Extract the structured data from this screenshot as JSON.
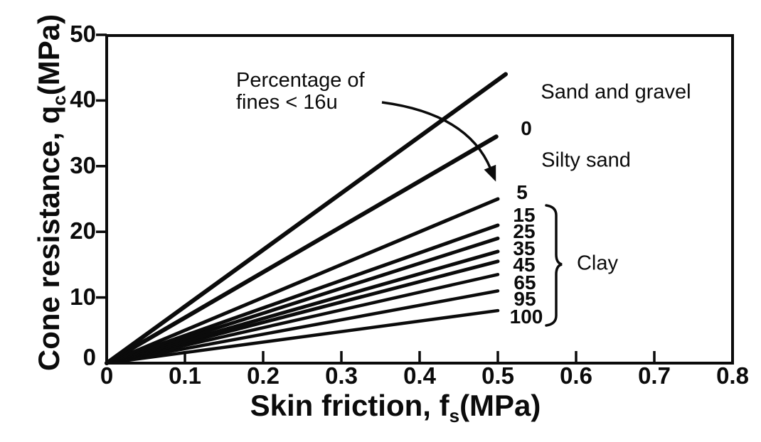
{
  "figure": {
    "background_color": "#ffffff",
    "ink_color": "#0b0b0b",
    "description": "Soil classification chart: cone resistance versus skin friction with lines of constant percentage of fines"
  },
  "chart_data": {
    "type": "line",
    "title": "",
    "xlabel": "Skin friction, fs (MPa)",
    "xlabel_parts": {
      "prefix": "Skin friction, f",
      "sub": "s",
      "suffix": "(MPa)"
    },
    "ylabel": "Cone resistance, qc (MPa)",
    "ylabel_parts": {
      "prefix": "Cone resistance, q",
      "sub": "c",
      "suffix": "(MPa)"
    },
    "xlim": [
      0,
      0.8
    ],
    "ylim": [
      0,
      50
    ],
    "x_ticks": [
      0,
      0.1,
      0.2,
      0.3,
      0.4,
      0.5,
      0.6,
      0.7,
      0.8
    ],
    "x_tick_labels": [
      "0",
      "0.1",
      "0.2",
      "0.3",
      "0.4",
      "0.5",
      "0.6",
      "0.7",
      "0.8"
    ],
    "y_ticks": [
      0,
      10,
      20,
      30,
      40,
      50
    ],
    "y_tick_labels": [
      "0",
      "10",
      "20",
      "30",
      "40",
      "50"
    ],
    "grid": false,
    "legend_position": "none",
    "annotation": {
      "line1": "Percentage of",
      "line2": "fines < 16u"
    },
    "soil_regions": [
      {
        "label": "Sand and gravel"
      },
      {
        "label": "Silty sand"
      },
      {
        "label": "Clay",
        "applies_to_fines_labels": [
          "15",
          "25",
          "35",
          "45",
          "65",
          "95",
          "100"
        ]
      }
    ],
    "series": [
      {
        "label": "",
        "region": "Sand and gravel",
        "fines_percent": null,
        "slope_qc_over_fs": 87,
        "start": {
          "fs": 0,
          "qc": 0
        },
        "end": {
          "fs": 0.51,
          "qc": 44
        }
      },
      {
        "label": "0",
        "region": "Silty sand",
        "fines_percent": 0,
        "slope_qc_over_fs": 69,
        "start": {
          "fs": 0,
          "qc": 0
        },
        "end": {
          "fs": 0.498,
          "qc": 34.5
        }
      },
      {
        "label": "5",
        "region": "Silty sand / Clay boundary",
        "fines_percent": 5,
        "slope_qc_over_fs": 50,
        "start": {
          "fs": 0,
          "qc": 0
        },
        "end": {
          "fs": 0.5,
          "qc": 25
        }
      },
      {
        "label": "15",
        "region": "Clay",
        "fines_percent": 15,
        "slope_qc_over_fs": 42,
        "start": {
          "fs": 0,
          "qc": 0
        },
        "end": {
          "fs": 0.5,
          "qc": 21
        }
      },
      {
        "label": "25",
        "region": "Clay",
        "fines_percent": 25,
        "slope_qc_over_fs": 38,
        "start": {
          "fs": 0,
          "qc": 0
        },
        "end": {
          "fs": 0.5,
          "qc": 19
        }
      },
      {
        "label": "35",
        "region": "Clay",
        "fines_percent": 35,
        "slope_qc_over_fs": 34,
        "start": {
          "fs": 0,
          "qc": 0
        },
        "end": {
          "fs": 0.5,
          "qc": 17
        }
      },
      {
        "label": "45",
        "region": "Clay",
        "fines_percent": 45,
        "slope_qc_over_fs": 31,
        "start": {
          "fs": 0,
          "qc": 0
        },
        "end": {
          "fs": 0.5,
          "qc": 15.5
        }
      },
      {
        "label": "65",
        "region": "Clay",
        "fines_percent": 65,
        "slope_qc_over_fs": 27,
        "start": {
          "fs": 0,
          "qc": 0
        },
        "end": {
          "fs": 0.5,
          "qc": 13.5
        }
      },
      {
        "label": "95",
        "region": "Clay",
        "fines_percent": 95,
        "slope_qc_over_fs": 22,
        "start": {
          "fs": 0,
          "qc": 0
        },
        "end": {
          "fs": 0.5,
          "qc": 11
        }
      },
      {
        "label": "100",
        "region": "Clay",
        "fines_percent": 100,
        "slope_qc_over_fs": 16,
        "start": {
          "fs": 0,
          "qc": 0
        },
        "end": {
          "fs": 0.5,
          "qc": 8
        }
      }
    ]
  }
}
